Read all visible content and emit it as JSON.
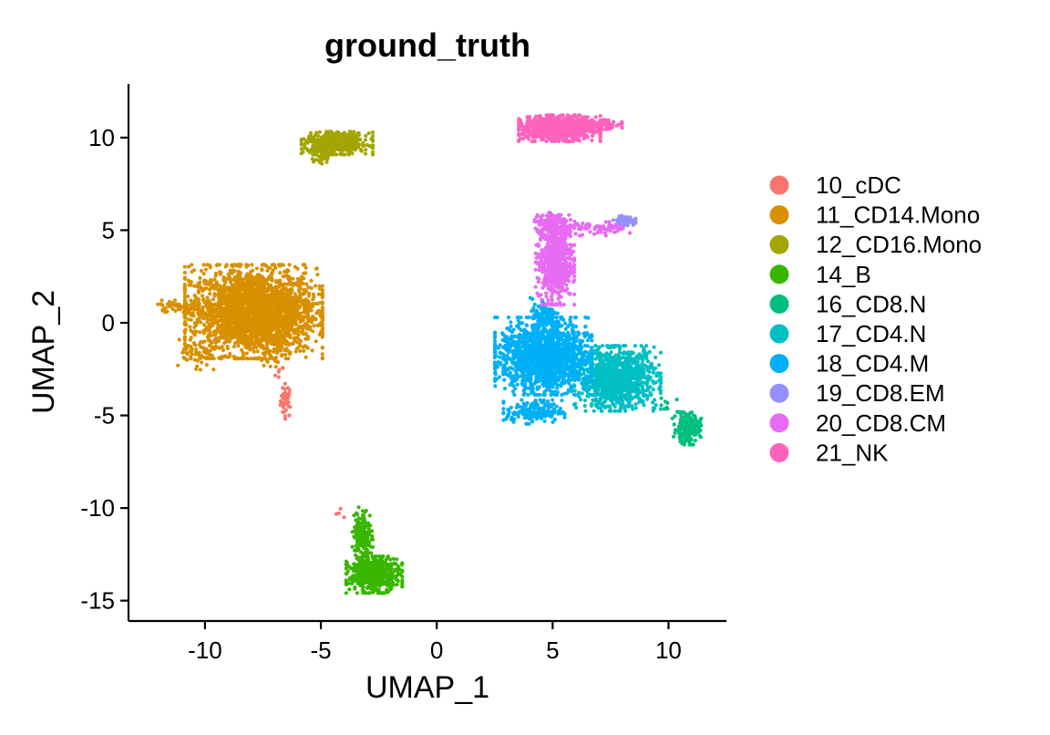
{
  "chart_data": {
    "type": "scatter",
    "title": "ground_truth",
    "xlabel": "UMAP_1",
    "ylabel": "UMAP_2",
    "xlim": [
      -13.3,
      12.5
    ],
    "ylim": [
      -16.1,
      12.9
    ],
    "x_ticks": [
      -10,
      -5,
      0,
      5,
      10
    ],
    "x_tick_labels": [
      "-10",
      "-5",
      "0",
      "5",
      "10"
    ],
    "y_ticks": [
      -15,
      -10,
      -5,
      0,
      5,
      10
    ],
    "y_tick_labels": [
      "-15",
      "-10",
      "-5",
      "0",
      "5",
      "10"
    ],
    "grid": false,
    "legend_position": "right",
    "series": [
      {
        "name": "10_cDC",
        "color": "#F8766D",
        "clusters": [
          {
            "x": -6.5,
            "y": -4.2,
            "sx": 0.12,
            "sy": 0.45,
            "n": 40
          },
          {
            "x": -6.8,
            "y": -2.8,
            "sx": 0.1,
            "sy": 0.25,
            "n": 6
          },
          {
            "x": -4.1,
            "y": -10.2,
            "sx": 0.15,
            "sy": 0.15,
            "n": 4
          }
        ]
      },
      {
        "name": "11_CD14.Mono",
        "color": "#D89000",
        "clusters": [
          {
            "x": -7.9,
            "y": 0.6,
            "sx": 1.35,
            "sy": 1.15,
            "n": 2600
          },
          {
            "x": -11.2,
            "y": 0.9,
            "sx": 0.45,
            "sy": 0.15,
            "n": 45
          },
          {
            "x": -10.4,
            "y": -1.9,
            "sx": 0.35,
            "sy": 0.45,
            "n": 45
          },
          {
            "x": -7.0,
            "y": -1.8,
            "sx": 0.3,
            "sy": 0.5,
            "n": 25
          }
        ]
      },
      {
        "name": "12_CD16.Mono",
        "color": "#A3A500",
        "clusters": [
          {
            "x": -4.3,
            "y": 9.7,
            "sx": 0.7,
            "sy": 0.28,
            "n": 500
          },
          {
            "x": -5.0,
            "y": 8.9,
            "sx": 0.2,
            "sy": 0.2,
            "n": 25
          }
        ]
      },
      {
        "name": "14_B",
        "color": "#39B600",
        "clusters": [
          {
            "x": -2.7,
            "y": -13.6,
            "sx": 0.55,
            "sy": 0.45,
            "n": 520
          },
          {
            "x": -3.2,
            "y": -11.5,
            "sx": 0.2,
            "sy": 0.7,
            "n": 170
          }
        ]
      },
      {
        "name": "16_CD8.N",
        "color": "#00BF7D",
        "clusters": [
          {
            "x": 10.8,
            "y": -5.7,
            "sx": 0.28,
            "sy": 0.4,
            "n": 200
          },
          {
            "x": 9.8,
            "y": -4.5,
            "sx": 0.35,
            "sy": 0.3,
            "n": 12
          }
        ]
      },
      {
        "name": "17_CD4.N",
        "color": "#00BFC4",
        "clusters": [
          {
            "x": 7.8,
            "y": -3.0,
            "sx": 0.85,
            "sy": 0.8,
            "n": 1050
          }
        ]
      },
      {
        "name": "18_CD4.M",
        "color": "#00B0F6",
        "clusters": [
          {
            "x": 4.6,
            "y": -1.8,
            "sx": 0.95,
            "sy": 0.95,
            "n": 1500
          },
          {
            "x": 4.2,
            "y": -4.8,
            "sx": 0.6,
            "sy": 0.3,
            "n": 180
          },
          {
            "x": 4.7,
            "y": 0.4,
            "sx": 0.3,
            "sy": 0.45,
            "n": 120
          }
        ]
      },
      {
        "name": "19_CD8.EM",
        "color": "#9590FF",
        "clusters": [
          {
            "x": 8.1,
            "y": 5.5,
            "sx": 0.22,
            "sy": 0.13,
            "n": 90
          }
        ]
      },
      {
        "name": "20_CD8.CM",
        "color": "#E76BF3",
        "clusters": [
          {
            "x": 5.1,
            "y": 3.4,
            "sx": 0.38,
            "sy": 1.1,
            "n": 650
          },
          {
            "x": 5.0,
            "y": 5.3,
            "sx": 0.35,
            "sy": 0.3,
            "n": 120
          },
          {
            "x": 6.9,
            "y": 5.1,
            "sx": 0.65,
            "sy": 0.18,
            "n": 70
          }
        ]
      },
      {
        "name": "21_NK",
        "color": "#FF62BC",
        "clusters": [
          {
            "x": 5.3,
            "y": 10.5,
            "sx": 0.8,
            "sy": 0.32,
            "n": 820
          },
          {
            "x": 6.9,
            "y": 10.7,
            "sx": 0.5,
            "sy": 0.12,
            "n": 110
          }
        ]
      }
    ]
  }
}
